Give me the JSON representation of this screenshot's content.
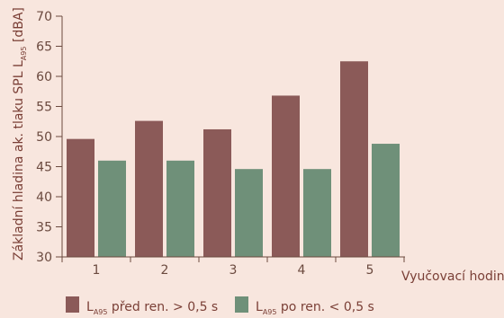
{
  "chart_data": {
    "type": "bar",
    "title": "",
    "xlabel": "Vyučovací hodiny",
    "ylabel": {
      "main": "Základní hladina ak. tlaku SPL L",
      "sub": "A95",
      "unit": " [dBA]"
    },
    "categories": [
      "1",
      "2",
      "3",
      "4",
      "5"
    ],
    "ylim": [
      30,
      70
    ],
    "yticks": [
      30,
      35,
      40,
      45,
      50,
      55,
      60,
      65,
      70
    ],
    "grid": false,
    "legend_position": "bottom",
    "series": [
      {
        "name": {
          "main": "L",
          "sub": "A95",
          "rest": " před ren. > 0,5 s"
        },
        "color": "#8b5a58",
        "values": [
          49.6,
          52.6,
          51.2,
          56.8,
          62.5
        ]
      },
      {
        "name": {
          "main": "L",
          "sub": "A95",
          "rest": " po ren. < 0,5 s"
        },
        "color": "#6f9079",
        "values": [
          46.0,
          46.0,
          44.6,
          44.6,
          48.8
        ]
      }
    ]
  }
}
